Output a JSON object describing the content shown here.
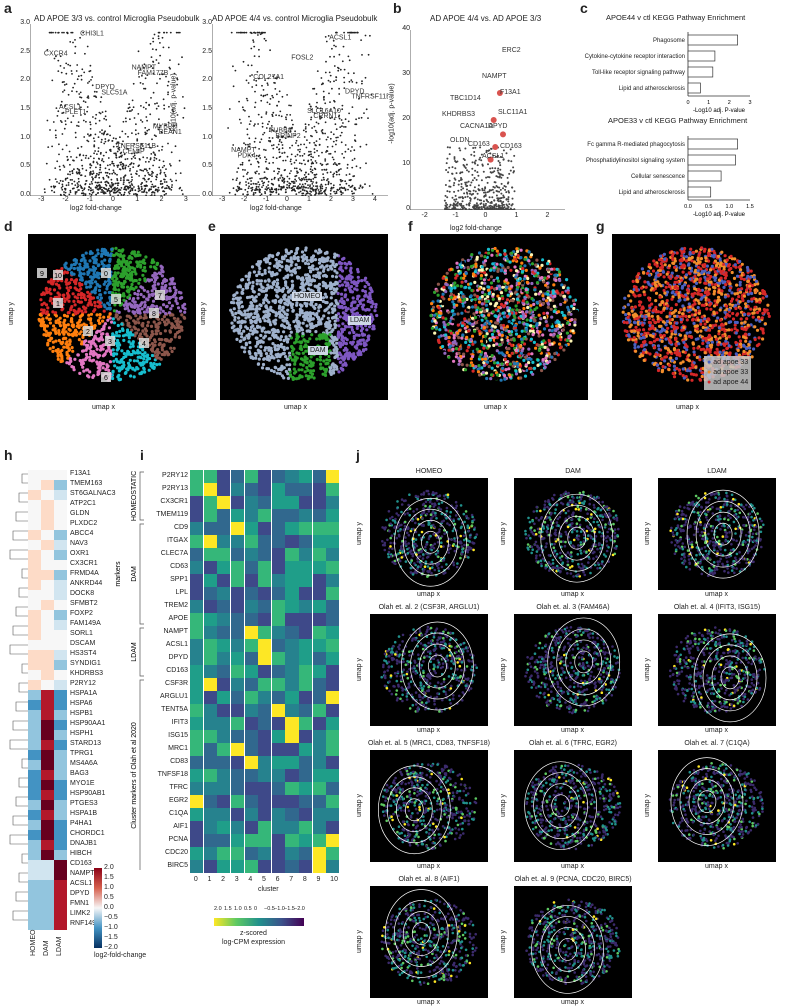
{
  "panels": {
    "a": "a",
    "b": "b",
    "c": "c",
    "d": "d",
    "e": "e",
    "f": "f",
    "g": "g",
    "h": "h",
    "i": "i",
    "j": "j"
  },
  "a": {
    "title1": "AD APOE 3/3 vs. control Microglia Pseudobulk",
    "title2": "AD APOE 4/4 vs. control Microglia Pseudobulk",
    "ylabel": "-log10(adj. p-value)",
    "xlabel": "log2 fold-change",
    "xticks1": [
      "-3",
      "-2",
      "-1",
      "0",
      "1",
      "2",
      "3"
    ],
    "xticks2": [
      "-3",
      "-2",
      "-1",
      "0",
      "1",
      "2",
      "3",
      "4"
    ],
    "yticks": [
      "0.0",
      "0.5",
      "1.0",
      "1.5",
      "2.0",
      "2.5",
      "3.0"
    ],
    "genes1": [
      "CEMIP",
      "BEAN1",
      "PLET1",
      "SLC51A",
      "FAM177B",
      "CXCR4",
      "CHI3L1",
      "TNFRSF11B",
      "MYBPH",
      "ACSL1",
      "DPYD",
      "NAMPT"
    ],
    "genes2": [
      "PDK4",
      "BRINP2",
      "CRRN1",
      "TNFRSF11B",
      "COL27A1",
      "FOSL2",
      "ACSL1",
      "NAMPT",
      "TUBB8",
      "SLC16A10",
      "DPYD"
    ]
  },
  "b": {
    "title": "AD APOE 4/4 vs. AD APOE 3/3",
    "ylabel": "-log10(adj. p-value)",
    "xlabel": "log2 fold-change",
    "xticks": [
      "-2",
      "-1",
      "0",
      "1",
      "2"
    ],
    "yticks": [
      "0",
      "10",
      "20",
      "30",
      "40"
    ],
    "genes": [
      "ERC2",
      "NAMPT",
      "F13A1",
      "TBC1D14",
      "SLC11A1",
      "KHDRBS3",
      "CACNA1A",
      "DPYD",
      "OLDN",
      "CD163",
      "CD163",
      "ACSL1"
    ]
  },
  "c": {
    "title1": "APOE44 v ctl KEGG Pathway Enrichment",
    "title2": "APOE33 v ctl KEGG Pathway Enrichment",
    "xlabel": "-Log10 adj. P-value",
    "chart_data": [
      {
        "type": "bar",
        "title": "APOE44 v ctl KEGG Pathway Enrichment",
        "categories": [
          "Phagosome",
          "Cytokine-cytokine receptor interaction",
          "Toll-like receptor signaling pathway",
          "Lipid and atherosclerosis"
        ],
        "values": [
          2.4,
          1.3,
          1.2,
          0.6
        ],
        "xlabel": "-Log10 adj. P-value",
        "xlim": [
          0,
          3
        ],
        "xticks": [
          "0",
          "1",
          "2",
          "3"
        ]
      },
      {
        "type": "bar",
        "title": "APOE33 v ctl KEGG Pathway Enrichment",
        "categories": [
          "Fc gamma R-mediated phagocytosis",
          "Phosphatidylinositol signaling system",
          "Cellular senescence",
          "Lipid and atherosclerosis"
        ],
        "values": [
          1.2,
          1.15,
          0.8,
          0.55
        ],
        "xlabel": "-Log10 adj. P-value",
        "xlim": [
          0,
          1.5
        ],
        "xticks": [
          "0.0",
          "0.5",
          "1.0",
          "1.5"
        ]
      }
    ]
  },
  "d": {
    "clusters": [
      "0",
      "1",
      "2",
      "3",
      "4",
      "5",
      "6",
      "7",
      "8",
      "9",
      "10"
    ],
    "xlabel": "umap x",
    "ylabel": "umap y"
  },
  "e": {
    "labels": [
      "HOMEO",
      "LDAM",
      "DAM"
    ],
    "xlabel": "umap x",
    "ylabel": "umap y"
  },
  "f": {
    "xlabel": "umap x",
    "ylabel": "umap y"
  },
  "g": {
    "xlabel": "umap x",
    "ylabel": "umap y",
    "legend": [
      "ad apoe 33",
      "ad apoe 33",
      "ad apoe 44"
    ]
  },
  "h": {
    "genes": [
      "F13A1",
      "TMEM163",
      "ST6GALNAC3",
      "ATP2C1",
      "GLDN",
      "PLXDC2",
      "ABCC4",
      "NAV3",
      "OXR1",
      "CX3CR1",
      "FRMD4A",
      "ANKRD44",
      "DOCK8",
      "SFMBT2",
      "FOXP2",
      "FAM149A",
      "SORL1",
      "DSCAM",
      "HS3ST4",
      "SYNDIG1",
      "KHDRBS3",
      "P2RY12",
      "HSPA1A",
      "HSPA6",
      "HSPB1",
      "HSP90AA1",
      "HSPH1",
      "STARD13",
      "TPRG1",
      "MS4A6A",
      "BAG3",
      "MYO1E",
      "HSP90AB1",
      "PTGES3",
      "HSPA1B",
      "P4HA1",
      "CHORDC1",
      "DNAJB1",
      "HIBCH",
      "CD163",
      "NAMPT",
      "ACSL1",
      "DPYD",
      "FMN1",
      "LIMK2",
      "RNF149"
    ],
    "columns": [
      "HOMEO",
      "DAM",
      "LDAM"
    ],
    "legend_ticks": [
      "2.0",
      "1.5",
      "1.0",
      "0.5",
      "0.0",
      "−0.5",
      "−1.0",
      "−1.5",
      "−2.0"
    ],
    "legend_title": "log2-fold-change"
  },
  "i": {
    "groups": [
      "HOMEOSTATIC",
      "DAM",
      "LDAM",
      "Cluster markers of Olah et al 2020"
    ],
    "side_label": "markers",
    "genes": [
      "P2RY12",
      "P2RY13",
      "CX3CR1",
      "TMEM119",
      "CD9",
      "ITGAX",
      "CLEC7A",
      "CD63",
      "SPP1",
      "LPL",
      "TREM2",
      "APOE",
      "NAMPT",
      "ACSL1",
      "DPYD",
      "CD163",
      "CSF3R",
      "ARGLU1",
      "TENT5A",
      "IFIT3",
      "ISG15",
      "MRC1",
      "CD83",
      "TNFSF18",
      "TFRC",
      "EGR2",
      "C1QA",
      "AIF1",
      "PCNA",
      "CDC20",
      "BIRC5"
    ],
    "clusters": [
      "0",
      "1",
      "2",
      "3",
      "4",
      "5",
      "6",
      "7",
      "8",
      "9",
      "10"
    ],
    "xlabel": "cluster",
    "legend_ticks": [
      "2.0",
      "1.5",
      "1.0",
      "0.5",
      "0",
      "−0.5",
      "−1.0",
      "−1.5",
      "−2.0"
    ],
    "legend_title1": "z-scored",
    "legend_title2": "log-CPM expression"
  },
  "j": {
    "titles": [
      "HOMEO",
      "DAM",
      "LDAM",
      "Olah et. al. 2 (CSF3R, ARGLU1)",
      "Olah et. al. 3 (FAM46A)",
      "Olah et. al. 4 (IFIT3, ISG15)",
      "Olah et. al. 5 (MRC1, CD83, TNFSF18)",
      "Olah et. al. 6 (TFRC, EGR2)",
      "Olah et. al. 7 (C1QA)",
      "Olah et. al. 8 (AIF1)",
      "Olah et. al. 9 (PCNA, CDC20, BIRC5)"
    ],
    "xlabel": "umap x",
    "ylabel": "umap y"
  }
}
